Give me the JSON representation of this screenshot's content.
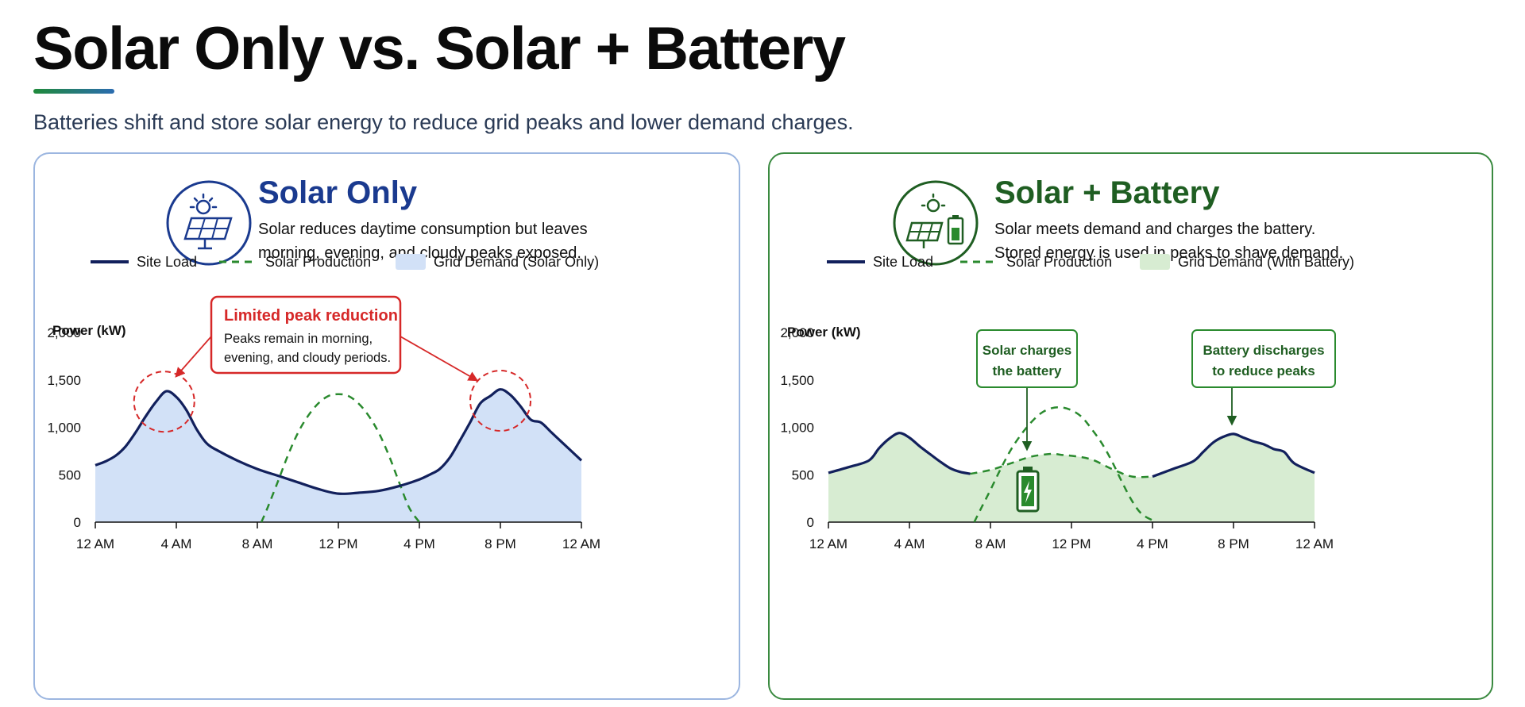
{
  "page": {
    "title": "Solar Only vs. Solar + Battery",
    "subtitle": "Batteries shift and store solar energy to reduce grid peaks and lower demand charges."
  },
  "colors": {
    "navy": "#12205c",
    "green_line": "#2a8a2e",
    "blue_fill": "#d2e1f7",
    "green_fill": "#d7ecd2",
    "red": "#d62828",
    "solar_only_title": "#1a3a8f",
    "battery_title": "#1f5e22"
  },
  "panels": {
    "left": {
      "title": "Solar Only",
      "description_line1": "Solar reduces daytime consumption but leaves",
      "description_line2": "morning, evening, and cloudy peaks exposed.",
      "icon": "solar-panel-icon",
      "callout": {
        "title": "Limited peak reduction",
        "line1": "Peaks remain in morning,",
        "line2": "evening, and cloudy periods."
      }
    },
    "right": {
      "title": "Solar + Battery",
      "description_line1": "Solar meets demand and charges the battery.",
      "description_line2": "Stored energy is used in peaks to shave demand.",
      "icon": "solar-battery-icon",
      "callout_charge": {
        "line1": "Solar charges",
        "line2": "the battery"
      },
      "callout_discharge": {
        "line1": "Battery discharges",
        "line2": "to reduce peaks"
      },
      "battery_marker_icon": "battery-charging-icon"
    }
  },
  "chart_data": [
    {
      "type": "area",
      "panel": "left",
      "ylabel": "Power (kW)",
      "ylim": [
        0,
        2000
      ],
      "y_ticks": [
        "0",
        "500",
        "1,000",
        "1,500",
        "2,000"
      ],
      "x_ticks": [
        "12 AM",
        "4 AM",
        "8 AM",
        "12 PM",
        "4 PM",
        "8 PM",
        "12 AM"
      ],
      "legend": [
        "Site Load",
        "Solar Production",
        "Grid Demand (Solar Only)"
      ],
      "series": [
        {
          "name": "Site Load",
          "style": "solid",
          "x": [
            0,
            0.5,
            1,
            1.5,
            2,
            2.5,
            3,
            3.5,
            4,
            4.5,
            5,
            5.5,
            6,
            7,
            8,
            9,
            10,
            11,
            12,
            13,
            14,
            15,
            16,
            16.5,
            17,
            17.5,
            18,
            18.5,
            19,
            19.5,
            20,
            20.5,
            21,
            21.5,
            22,
            22.5,
            23,
            24
          ],
          "y": [
            600,
            640,
            700,
            800,
            950,
            1120,
            1270,
            1380,
            1320,
            1180,
            980,
            830,
            760,
            650,
            560,
            490,
            420,
            350,
            300,
            310,
            330,
            380,
            450,
            500,
            560,
            680,
            860,
            1050,
            1250,
            1330,
            1400,
            1340,
            1220,
            1080,
            1050,
            950,
            850,
            650
          ]
        },
        {
          "name": "Solar Production",
          "style": "dashed",
          "x": [
            8.2,
            8.5,
            9,
            9.5,
            10,
            10.5,
            11,
            11.5,
            12,
            12.5,
            13,
            13.5,
            14,
            14.5,
            15,
            15.5,
            16
          ],
          "y": [
            0,
            150,
            420,
            700,
            940,
            1120,
            1250,
            1330,
            1350,
            1330,
            1250,
            1120,
            940,
            700,
            420,
            150,
            0
          ]
        }
      ],
      "grid_demand_fill": "Grid Demand (Solar Only)"
    },
    {
      "type": "area",
      "panel": "right",
      "ylabel": "Power (kW)",
      "ylim": [
        0,
        2000
      ],
      "y_ticks": [
        "0",
        "500",
        "1,000",
        "1,500",
        "2,000"
      ],
      "x_ticks": [
        "12 AM",
        "4 AM",
        "8 AM",
        "12 PM",
        "4 PM",
        "8 PM",
        "12 AM"
      ],
      "legend": [
        "Site Load",
        "Solar Production",
        "Grid Demand (With Battery)"
      ],
      "series": [
        {
          "name": "Site Load",
          "style": "solid",
          "x": [
            0,
            1,
            2,
            2.5,
            3,
            3.5,
            4,
            4.5,
            5,
            5.5,
            6,
            6.5,
            7
          ],
          "y": [
            520,
            580,
            650,
            780,
            880,
            940,
            890,
            800,
            720,
            640,
            570,
            530,
            510
          ]
        },
        {
          "name": "Site Load",
          "style": "solid",
          "x": [
            16,
            17,
            18,
            18.5,
            19,
            19.5,
            20,
            20.5,
            21,
            21.5,
            22,
            22.5,
            23,
            24
          ],
          "y": [
            480,
            560,
            640,
            740,
            840,
            900,
            930,
            890,
            850,
            820,
            770,
            740,
            620,
            520
          ]
        },
        {
          "name": "Solar Production",
          "style": "dashed",
          "x": [
            7.2,
            7.5,
            8,
            8.5,
            9,
            9.5,
            10,
            10.5,
            11,
            11.5,
            12,
            12.5,
            13,
            13.5,
            14,
            14.5,
            15,
            15.5,
            16.2
          ],
          "y": [
            0,
            130,
            340,
            560,
            760,
            920,
            1050,
            1150,
            1200,
            1210,
            1180,
            1110,
            980,
            830,
            640,
            420,
            220,
            80,
            0
          ]
        },
        {
          "name": "Solar Production",
          "style": "dashed",
          "x": [
            7,
            8,
            9,
            10,
            11,
            11.5,
            12,
            13,
            14,
            15,
            16
          ],
          "y": [
            510,
            550,
            620,
            690,
            720,
            710,
            700,
            660,
            560,
            480,
            480
          ]
        }
      ],
      "grid_demand_fill": "Grid Demand (With Battery)"
    }
  ]
}
